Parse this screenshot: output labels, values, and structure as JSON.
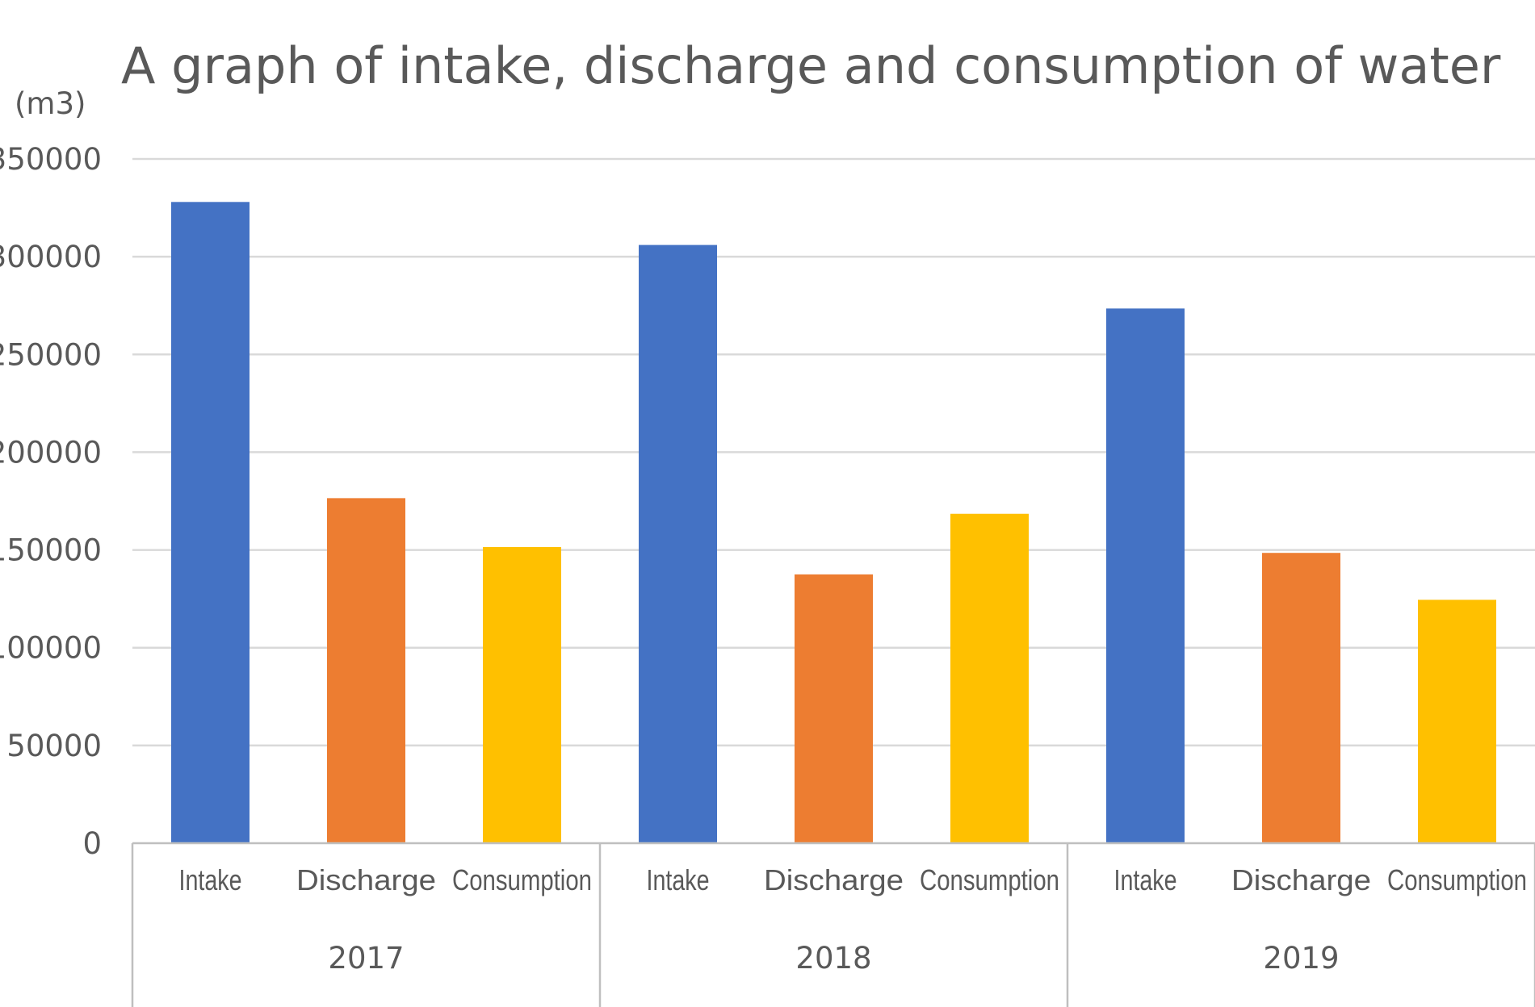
{
  "chart_data": {
    "type": "bar",
    "title": "A graph of intake, discharge and consumption of water",
    "unit_label": "(m3)",
    "ylim": [
      0,
      350000
    ],
    "y_ticks": [
      "0",
      "50000",
      "100000",
      "150000",
      "200000",
      "250000",
      "300000",
      "350000"
    ],
    "grid": true,
    "legend": "none",
    "groups": [
      {
        "label": "2017",
        "bars": [
          {
            "category": "Intake",
            "value": 328000
          },
          {
            "category": "Discharge",
            "value": 176500
          },
          {
            "category": "Consumption",
            "value": 151500
          }
        ]
      },
      {
        "label": "2018",
        "bars": [
          {
            "category": "Intake",
            "value": 306000
          },
          {
            "category": "Discharge",
            "value": 137500
          },
          {
            "category": "Consumption",
            "value": 168500
          }
        ]
      },
      {
        "label": "2019",
        "bars": [
          {
            "category": "Intake",
            "value": 273500
          },
          {
            "category": "Discharge",
            "value": 148500
          },
          {
            "category": "Consumption",
            "value": 124500
          }
        ]
      }
    ],
    "colors": {
      "Intake": "#4472c4",
      "Discharge": "#ed7d31",
      "Consumption": "#ffc000"
    }
  }
}
